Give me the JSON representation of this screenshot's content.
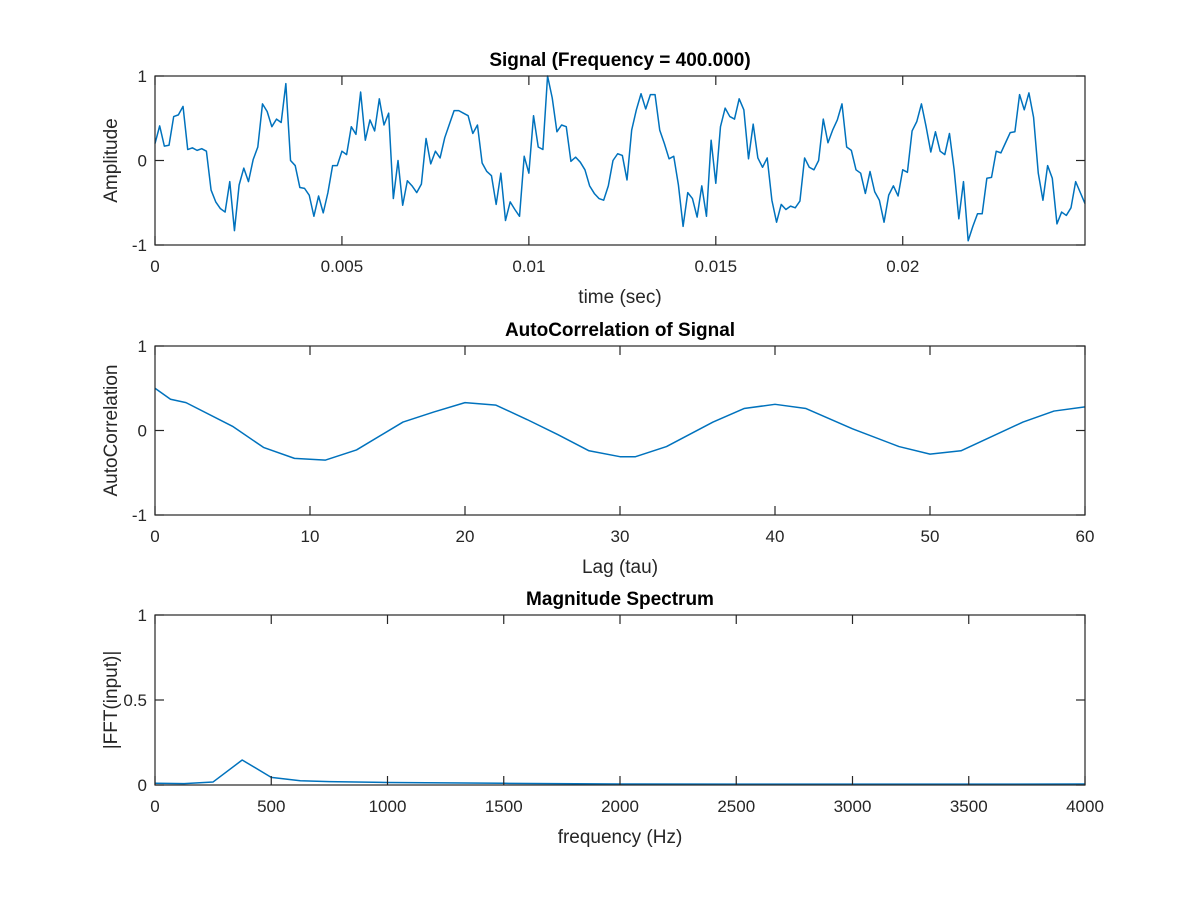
{
  "chart_data": [
    {
      "type": "line",
      "title": "Signal (Frequency = 400.000)",
      "xlabel": "time (sec)",
      "ylabel": "Amplitude",
      "xlim": [
        0,
        0.024875
      ],
      "ylim": [
        -1,
        1
      ],
      "xticks": [
        0,
        0.005,
        0.01,
        0.015,
        0.02
      ],
      "xticklabels": [
        "0",
        "0.005",
        "0.01",
        "0.015",
        "0.02"
      ],
      "yticks": [
        -1,
        0,
        1
      ],
      "yticklabels": [
        "-1",
        "0",
        "1"
      ],
      "x_step": 0.000125,
      "color": "#0072BD",
      "values": [
        0.2,
        0.41,
        0.17,
        0.18,
        0.52,
        0.54,
        0.64,
        0.13,
        0.15,
        0.12,
        0.14,
        0.11,
        -0.35,
        -0.49,
        -0.57,
        -0.61,
        -0.25,
        -0.83,
        -0.29,
        -0.09,
        -0.25,
        0.01,
        0.16,
        0.67,
        0.58,
        0.4,
        0.49,
        0.45,
        0.91,
        0.0,
        -0.06,
        -0.32,
        -0.33,
        -0.41,
        -0.66,
        -0.42,
        -0.62,
        -0.38,
        -0.06,
        -0.06,
        0.11,
        0.07,
        0.4,
        0.31,
        0.81,
        0.24,
        0.48,
        0.35,
        0.73,
        0.42,
        0.56,
        -0.45,
        0.0,
        -0.53,
        -0.24,
        -0.3,
        -0.38,
        -0.28,
        0.26,
        -0.04,
        0.11,
        0.03,
        0.27,
        0.43,
        0.59,
        0.59,
        0.56,
        0.53,
        0.32,
        0.42,
        -0.03,
        -0.13,
        -0.18,
        -0.52,
        -0.15,
        -0.71,
        -0.49,
        -0.58,
        -0.66,
        0.05,
        -0.15,
        0.53,
        0.16,
        0.13,
        1.0,
        0.74,
        0.34,
        0.42,
        0.4,
        -0.01,
        0.04,
        -0.02,
        -0.11,
        -0.3,
        -0.39,
        -0.45,
        -0.47,
        -0.3,
        0.0,
        0.08,
        0.06,
        -0.23,
        0.36,
        0.6,
        0.79,
        0.61,
        0.78,
        0.78,
        0.36,
        0.2,
        0.02,
        0.05,
        -0.29,
        -0.78,
        -0.38,
        -0.45,
        -0.67,
        -0.3,
        -0.66,
        0.24,
        -0.27,
        0.4,
        0.62,
        0.52,
        0.49,
        0.73,
        0.6,
        0.02,
        0.43,
        0.03,
        -0.08,
        0.03,
        -0.47,
        -0.73,
        -0.52,
        -0.58,
        -0.54,
        -0.56,
        -0.48,
        0.03,
        -0.08,
        -0.11,
        0.0,
        0.49,
        0.21,
        0.36,
        0.48,
        0.67,
        0.16,
        0.12,
        -0.11,
        -0.15,
        -0.39,
        -0.13,
        -0.37,
        -0.47,
        -0.73,
        -0.41,
        -0.3,
        -0.42,
        -0.11,
        -0.14,
        0.35,
        0.46,
        0.67,
        0.4,
        0.1,
        0.34,
        0.11,
        0.07,
        0.32,
        -0.11,
        -0.69,
        -0.25,
        -0.95,
        -0.78,
        -0.63,
        -0.63,
        -0.21,
        -0.2,
        0.11,
        0.09,
        0.21,
        0.33,
        0.34,
        0.78,
        0.6,
        0.8,
        0.51,
        -0.15,
        -0.47,
        -0.06,
        -0.21,
        -0.75,
        -0.61,
        -0.65,
        -0.56,
        -0.25,
        -0.38,
        -0.51
      ]
    },
    {
      "type": "line",
      "title": "AutoCorrelation of Signal",
      "xlabel": "Lag (tau)",
      "ylabel": "AutoCorrelation",
      "xlim": [
        0,
        60
      ],
      "ylim": [
        -1,
        1
      ],
      "xticks": [
        0,
        10,
        20,
        30,
        40,
        50,
        60
      ],
      "xticklabels": [
        "0",
        "10",
        "20",
        "30",
        "40",
        "50",
        "60"
      ],
      "yticks": [
        -1,
        0,
        1
      ],
      "yticklabels": [
        "-1",
        "0",
        "1"
      ],
      "color": "#0072BD",
      "x": [
        0,
        1,
        2,
        5,
        7,
        9,
        11,
        13,
        16,
        18,
        20,
        22,
        24,
        26,
        28,
        30,
        31,
        33,
        36,
        38,
        40,
        42,
        45,
        48,
        50,
        52,
        56,
        58,
        60
      ],
      "y": [
        0.5,
        0.37,
        0.33,
        0.05,
        -0.2,
        -0.33,
        -0.35,
        -0.23,
        0.1,
        0.22,
        0.33,
        0.3,
        0.13,
        -0.05,
        -0.24,
        -0.31,
        -0.31,
        -0.19,
        0.1,
        0.26,
        0.31,
        0.26,
        0.02,
        -0.19,
        -0.28,
        -0.24,
        0.1,
        0.23,
        0.28
      ]
    },
    {
      "type": "line",
      "title": "Magnitude Spectrum",
      "xlabel": "frequency (Hz)",
      "ylabel": "|FFT(input)|",
      "xlim": [
        0,
        4000
      ],
      "ylim": [
        0,
        1
      ],
      "xticks": [
        0,
        500,
        1000,
        1500,
        2000,
        2500,
        3000,
        3500,
        4000
      ],
      "xticklabels": [
        "0",
        "500",
        "1000",
        "1500",
        "2000",
        "2500",
        "3000",
        "3500",
        "4000"
      ],
      "yticks": [
        0,
        0.5,
        1
      ],
      "yticklabels": [
        "0",
        "0.5",
        "1"
      ],
      "color": "#0072BD",
      "x": [
        0,
        125,
        250,
        375,
        500,
        625,
        750,
        1000,
        1500,
        2000,
        2500,
        3000,
        3500,
        4000
      ],
      "y": [
        0.01,
        0.008,
        0.018,
        0.147,
        0.045,
        0.025,
        0.02,
        0.015,
        0.01,
        0.006,
        0.005,
        0.005,
        0.005,
        0.006
      ]
    }
  ]
}
